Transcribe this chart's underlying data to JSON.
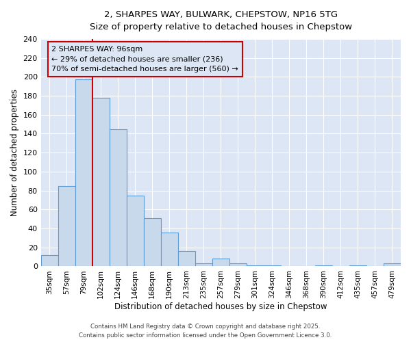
{
  "title_line1": "2, SHARPES WAY, BULWARK, CHEPSTOW, NP16 5TG",
  "title_line2": "Size of property relative to detached houses in Chepstow",
  "categories": [
    "35sqm",
    "57sqm",
    "79sqm",
    "102sqm",
    "124sqm",
    "146sqm",
    "168sqm",
    "190sqm",
    "213sqm",
    "235sqm",
    "257sqm",
    "279sqm",
    "301sqm",
    "324sqm",
    "346sqm",
    "368sqm",
    "390sqm",
    "412sqm",
    "435sqm",
    "457sqm",
    "479sqm"
  ],
  "values": [
    12,
    85,
    197,
    178,
    145,
    75,
    51,
    36,
    16,
    3,
    8,
    3,
    1,
    1,
    0,
    0,
    1,
    0,
    1,
    0,
    3
  ],
  "bar_color": "#c9d9ec",
  "bar_edge_color": "#5b9bd5",
  "bar_edge_width": 0.8,
  "vline_color": "#cc0000",
  "ylabel": "Number of detached properties",
  "xlabel": "Distribution of detached houses by size in Chepstow",
  "ylim": [
    0,
    240
  ],
  "yticks": [
    0,
    20,
    40,
    60,
    80,
    100,
    120,
    140,
    160,
    180,
    200,
    220,
    240
  ],
  "plot_bg_color": "#dce6f5",
  "fig_bg_color": "#ffffff",
  "grid_color": "#ffffff",
  "annotation_text": "2 SHARPES WAY: 96sqm\n← 29% of detached houses are smaller (236)\n70% of semi-detached houses are larger (560) →",
  "annotation_box_color": "#cc0000",
  "footer_line1": "Contains HM Land Registry data © Crown copyright and database right 2025.",
  "footer_line2": "Contains public sector information licensed under the Open Government Licence 3.0."
}
